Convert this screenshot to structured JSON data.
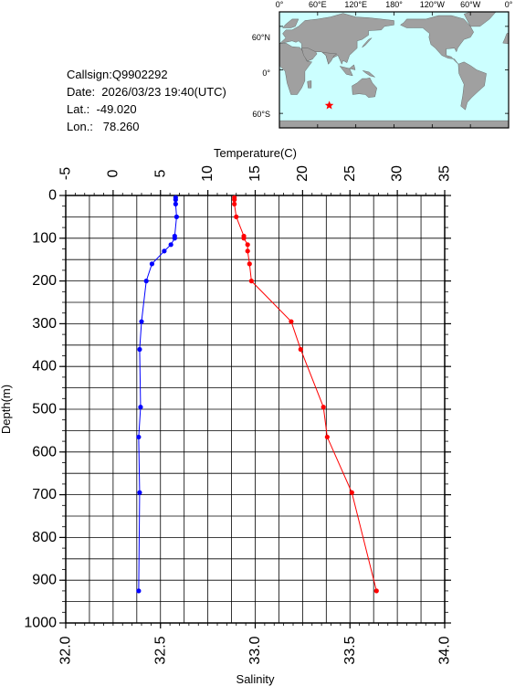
{
  "info": {
    "callsign": "Callsign:Q9902292",
    "date": "Date:  2026/03/23 19:40(UTC)",
    "lat": "Lat.:  -49.020",
    "lon": "Lon.:   78.260"
  },
  "map": {
    "lon_labels": [
      "0°",
      "60°E",
      "120°E",
      "180°",
      "120°W",
      "60°W",
      "0°"
    ],
    "lat_labels": [
      "60°N",
      "0°",
      "60°S"
    ],
    "ocean_color": "#ccffff",
    "land_color": "#a0a0a0",
    "marker": {
      "lon": 78.26,
      "lat": -49.02,
      "color": "#ff0000",
      "shape": "star"
    }
  },
  "chart_data": {
    "type": "line",
    "y_label": "Depth(m)",
    "y_range": [
      1000,
      0
    ],
    "y_ticks": [
      0,
      100,
      200,
      300,
      400,
      500,
      600,
      700,
      800,
      900,
      1000
    ],
    "top_axis": {
      "label": "Temperature(C)",
      "range": [
        -5,
        35
      ],
      "ticks": [
        -5,
        0,
        5,
        10,
        15,
        20,
        25,
        30,
        35
      ]
    },
    "bottom_axis": {
      "label": "Salinity",
      "range": [
        32.0,
        34.0
      ],
      "ticks": [
        "32.0",
        "32.5",
        "33.0",
        "33.5",
        "34.0"
      ]
    },
    "grid": true,
    "series": [
      {
        "axis": "temperature",
        "color": "#0000ff",
        "depth": [
          5,
          10,
          20,
          50,
          95,
          100,
          115,
          130,
          160,
          200,
          295,
          360,
          495,
          565,
          695,
          925
        ],
        "values": [
          6.6,
          6.6,
          6.6,
          6.7,
          6.5,
          6.5,
          6.1,
          5.4,
          4.1,
          3.5,
          3.0,
          2.8,
          2.9,
          2.7,
          2.8,
          2.7
        ]
      },
      {
        "axis": "salinity",
        "color": "#ff0000",
        "depth": [
          5,
          10,
          20,
          50,
          95,
          100,
          115,
          130,
          160,
          200,
          295,
          360,
          495,
          565,
          695,
          925
        ],
        "values": [
          32.89,
          32.89,
          32.89,
          32.9,
          32.94,
          32.94,
          32.96,
          32.96,
          32.97,
          32.98,
          33.19,
          33.24,
          33.36,
          33.38,
          33.51,
          33.64
        ]
      }
    ]
  }
}
